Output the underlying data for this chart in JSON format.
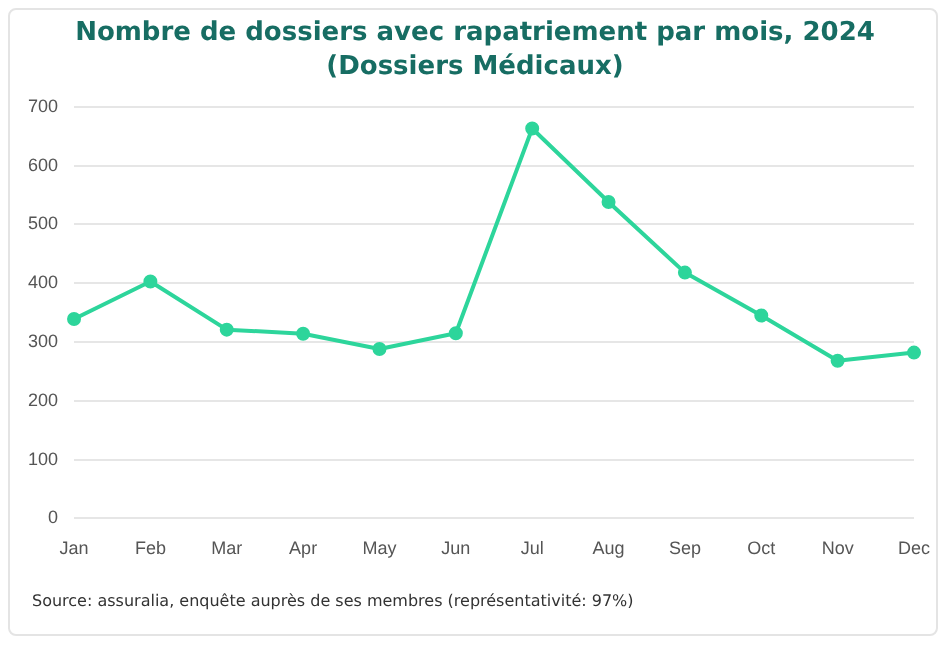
{
  "chart_data": {
    "type": "line",
    "title": "Nombre de dossiers avec rapatriement par mois, 2024\n(Dossiers Médicaux)",
    "categories": [
      "Jan",
      "Feb",
      "Mar",
      "Apr",
      "May",
      "Jun",
      "Jul",
      "Aug",
      "Sep",
      "Oct",
      "Nov",
      "Dec"
    ],
    "series": [
      {
        "color": "#2dd59b",
        "values": [
          339,
          403,
          321,
          314,
          288,
          315,
          663,
          538,
          418,
          345,
          268,
          282
        ]
      }
    ],
    "ylim": [
      0,
      700
    ],
    "yticks": [
      0,
      100,
      200,
      300,
      400,
      500,
      600,
      700
    ],
    "grid": "y",
    "legend": false,
    "marker": "circle",
    "line_style": "solid",
    "annotations": [
      "Source: assuralia, enquête auprès de ses membres (représentativité: 97%)"
    ]
  }
}
